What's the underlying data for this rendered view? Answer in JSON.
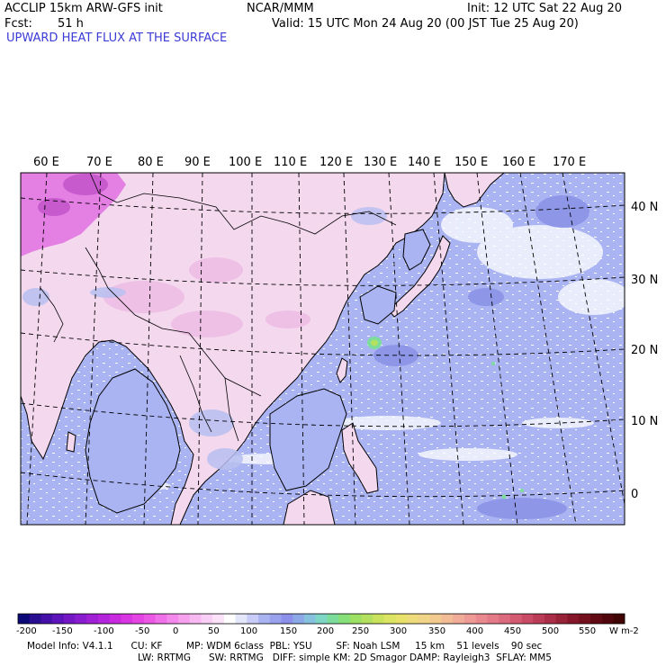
{
  "header": {
    "model": "ACCLIP 15km ARW-GFS init",
    "org": "NCAR/MMM",
    "init": "Init: 12 UTC Sat 22 Aug 20",
    "fcst_label": "Fcst:",
    "fcst_value": "51 h",
    "valid": "Valid: 15 UTC Mon 24 Aug 20 (00 JST Tue 25 Aug 20)",
    "field": "UPWARD HEAT FLUX AT THE SURFACE",
    "field_color": "#3b3bd6"
  },
  "map": {
    "lon_labels": [
      "60 E",
      "70 E",
      "80 E",
      "90 E",
      "100 E",
      "110 E",
      "120 E",
      "130 E",
      "140 E",
      "150 E",
      "160 E",
      "170 E"
    ],
    "lat_labels": [
      "40 N",
      "30 N",
      "20 N",
      "10 N",
      "0"
    ],
    "colors": {
      "land_pink": "#f4d8ee",
      "ocean": "#aab4f2",
      "magenta": "#e070e0",
      "coast": "#000000",
      "grid": "#000000"
    }
  },
  "colorbar": {
    "labels": [
      "-200",
      "-150",
      "-100",
      "-50",
      "0",
      "50",
      "100",
      "150",
      "200",
      "250",
      "300",
      "350",
      "400",
      "450",
      "500",
      "550"
    ],
    "unit": "W m-2",
    "colors": [
      "#0b0878",
      "#2a0e92",
      "#4410a8",
      "#5c14ba",
      "#7418c6",
      "#8a1ccf",
      "#a020d6",
      "#b424dc",
      "#c82ae0",
      "#d836e2",
      "#e444e4",
      "#ec58e6",
      "#f070ea",
      "#f488ec",
      "#f6a0ee",
      "#f8b8f2",
      "#facff6",
      "#fce2f8",
      "#ffffff",
      "#e4e6fa",
      "#c8ccf6",
      "#aab4f2",
      "#9aa2ee",
      "#8c90ea",
      "#8ca8e6",
      "#86c2de",
      "#7ed6c4",
      "#7cdc9c",
      "#86e07a",
      "#9ce064",
      "#b4e060",
      "#cae25e",
      "#dce464",
      "#e8e26c",
      "#eedc7c",
      "#f0d488",
      "#f2ca90",
      "#f2bc96",
      "#f0ac98",
      "#ee9a96",
      "#ea8a90",
      "#e47a88",
      "#dc6a7e",
      "#d45a72",
      "#c84a64",
      "#ba3c56",
      "#aa2e48",
      "#982238",
      "#86162a",
      "#74101e",
      "#620a14",
      "#50060c",
      "#400404"
    ]
  },
  "footer": {
    "line1": "Model Info: V4.1.1      CU: KF        MP: WDM 6class  PBL: YSU        SF: Noah LSM     15 km    51 levels    90 sec",
    "line2": "LW: RRTMG      SW: RRTMG   DIFF: simple KM: 2D Smagor DAMP: Rayleigh3  SFLAY: MM5"
  }
}
